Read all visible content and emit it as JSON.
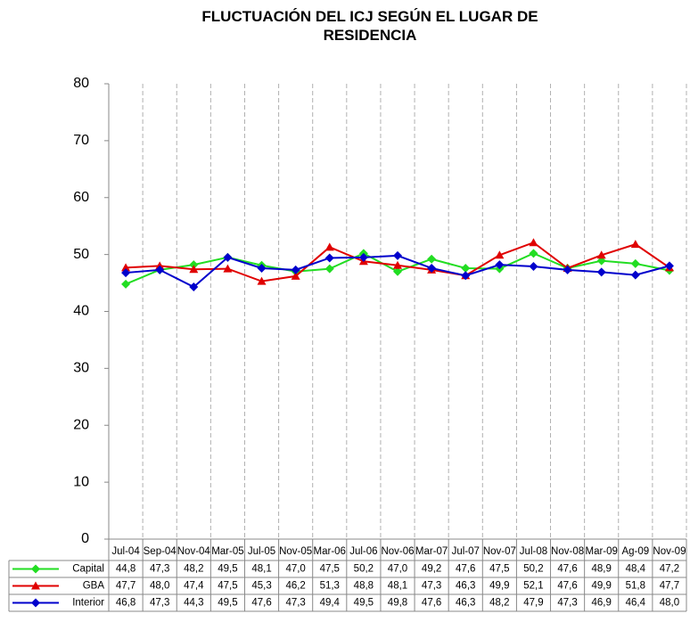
{
  "chart_data": {
    "type": "line",
    "title": "FLUCTUACIÓN DEL ICJ SEGÚN EL LUGAR DE RESIDENCIA",
    "categories": [
      "Jul-04",
      "Sep-04",
      "Nov-04",
      "Mar-05",
      "Jul-05",
      "Nov-05",
      "Mar-06",
      "Jul-06",
      "Nov-06",
      "Mar-07",
      "Jul-07",
      "Nov-07",
      "Jul-08",
      "Nov-08",
      "Mar-09",
      "Ag-09",
      "Nov-09"
    ],
    "series": [
      {
        "name": "Capital",
        "color": "#22dd22",
        "marker": "diamond",
        "values": [
          44.8,
          47.3,
          48.2,
          49.5,
          48.1,
          47.0,
          47.5,
          50.2,
          47.0,
          49.2,
          47.6,
          47.5,
          50.2,
          47.6,
          48.9,
          48.4,
          47.2
        ],
        "value_labels": [
          "44,8",
          "47,3",
          "48,2",
          "49,5",
          "48,1",
          "47,0",
          "47,5",
          "50,2",
          "47,0",
          "49,2",
          "47,6",
          "47,5",
          "50,2",
          "47,6",
          "48,9",
          "48,4",
          "47,2"
        ]
      },
      {
        "name": "GBA",
        "color": "#e00000",
        "marker": "triangle",
        "values": [
          47.7,
          48.0,
          47.4,
          47.5,
          45.3,
          46.2,
          51.3,
          48.8,
          48.1,
          47.3,
          46.3,
          49.9,
          52.1,
          47.6,
          49.9,
          51.8,
          47.7
        ],
        "value_labels": [
          "47,7",
          "48,0",
          "47,4",
          "47,5",
          "45,3",
          "46,2",
          "51,3",
          "48,8",
          "48,1",
          "47,3",
          "46,3",
          "49,9",
          "52,1",
          "47,6",
          "49,9",
          "51,8",
          "47,7"
        ]
      },
      {
        "name": "Interior",
        "color": "#0000cc",
        "marker": "diamond",
        "values": [
          46.8,
          47.3,
          44.3,
          49.5,
          47.6,
          47.3,
          49.4,
          49.5,
          49.8,
          47.6,
          46.3,
          48.2,
          47.9,
          47.3,
          46.9,
          46.4,
          48.0
        ],
        "value_labels": [
          "46,8",
          "47,3",
          "44,3",
          "49,5",
          "47,6",
          "47,3",
          "49,4",
          "49,5",
          "49,8",
          "47,6",
          "46,3",
          "48,2",
          "47,9",
          "47,3",
          "46,9",
          "46,4",
          "48,0"
        ]
      }
    ],
    "ylim": [
      0,
      80
    ],
    "yticks": [
      0,
      10,
      20,
      30,
      40,
      50,
      60,
      70,
      80
    ],
    "grid": true
  }
}
